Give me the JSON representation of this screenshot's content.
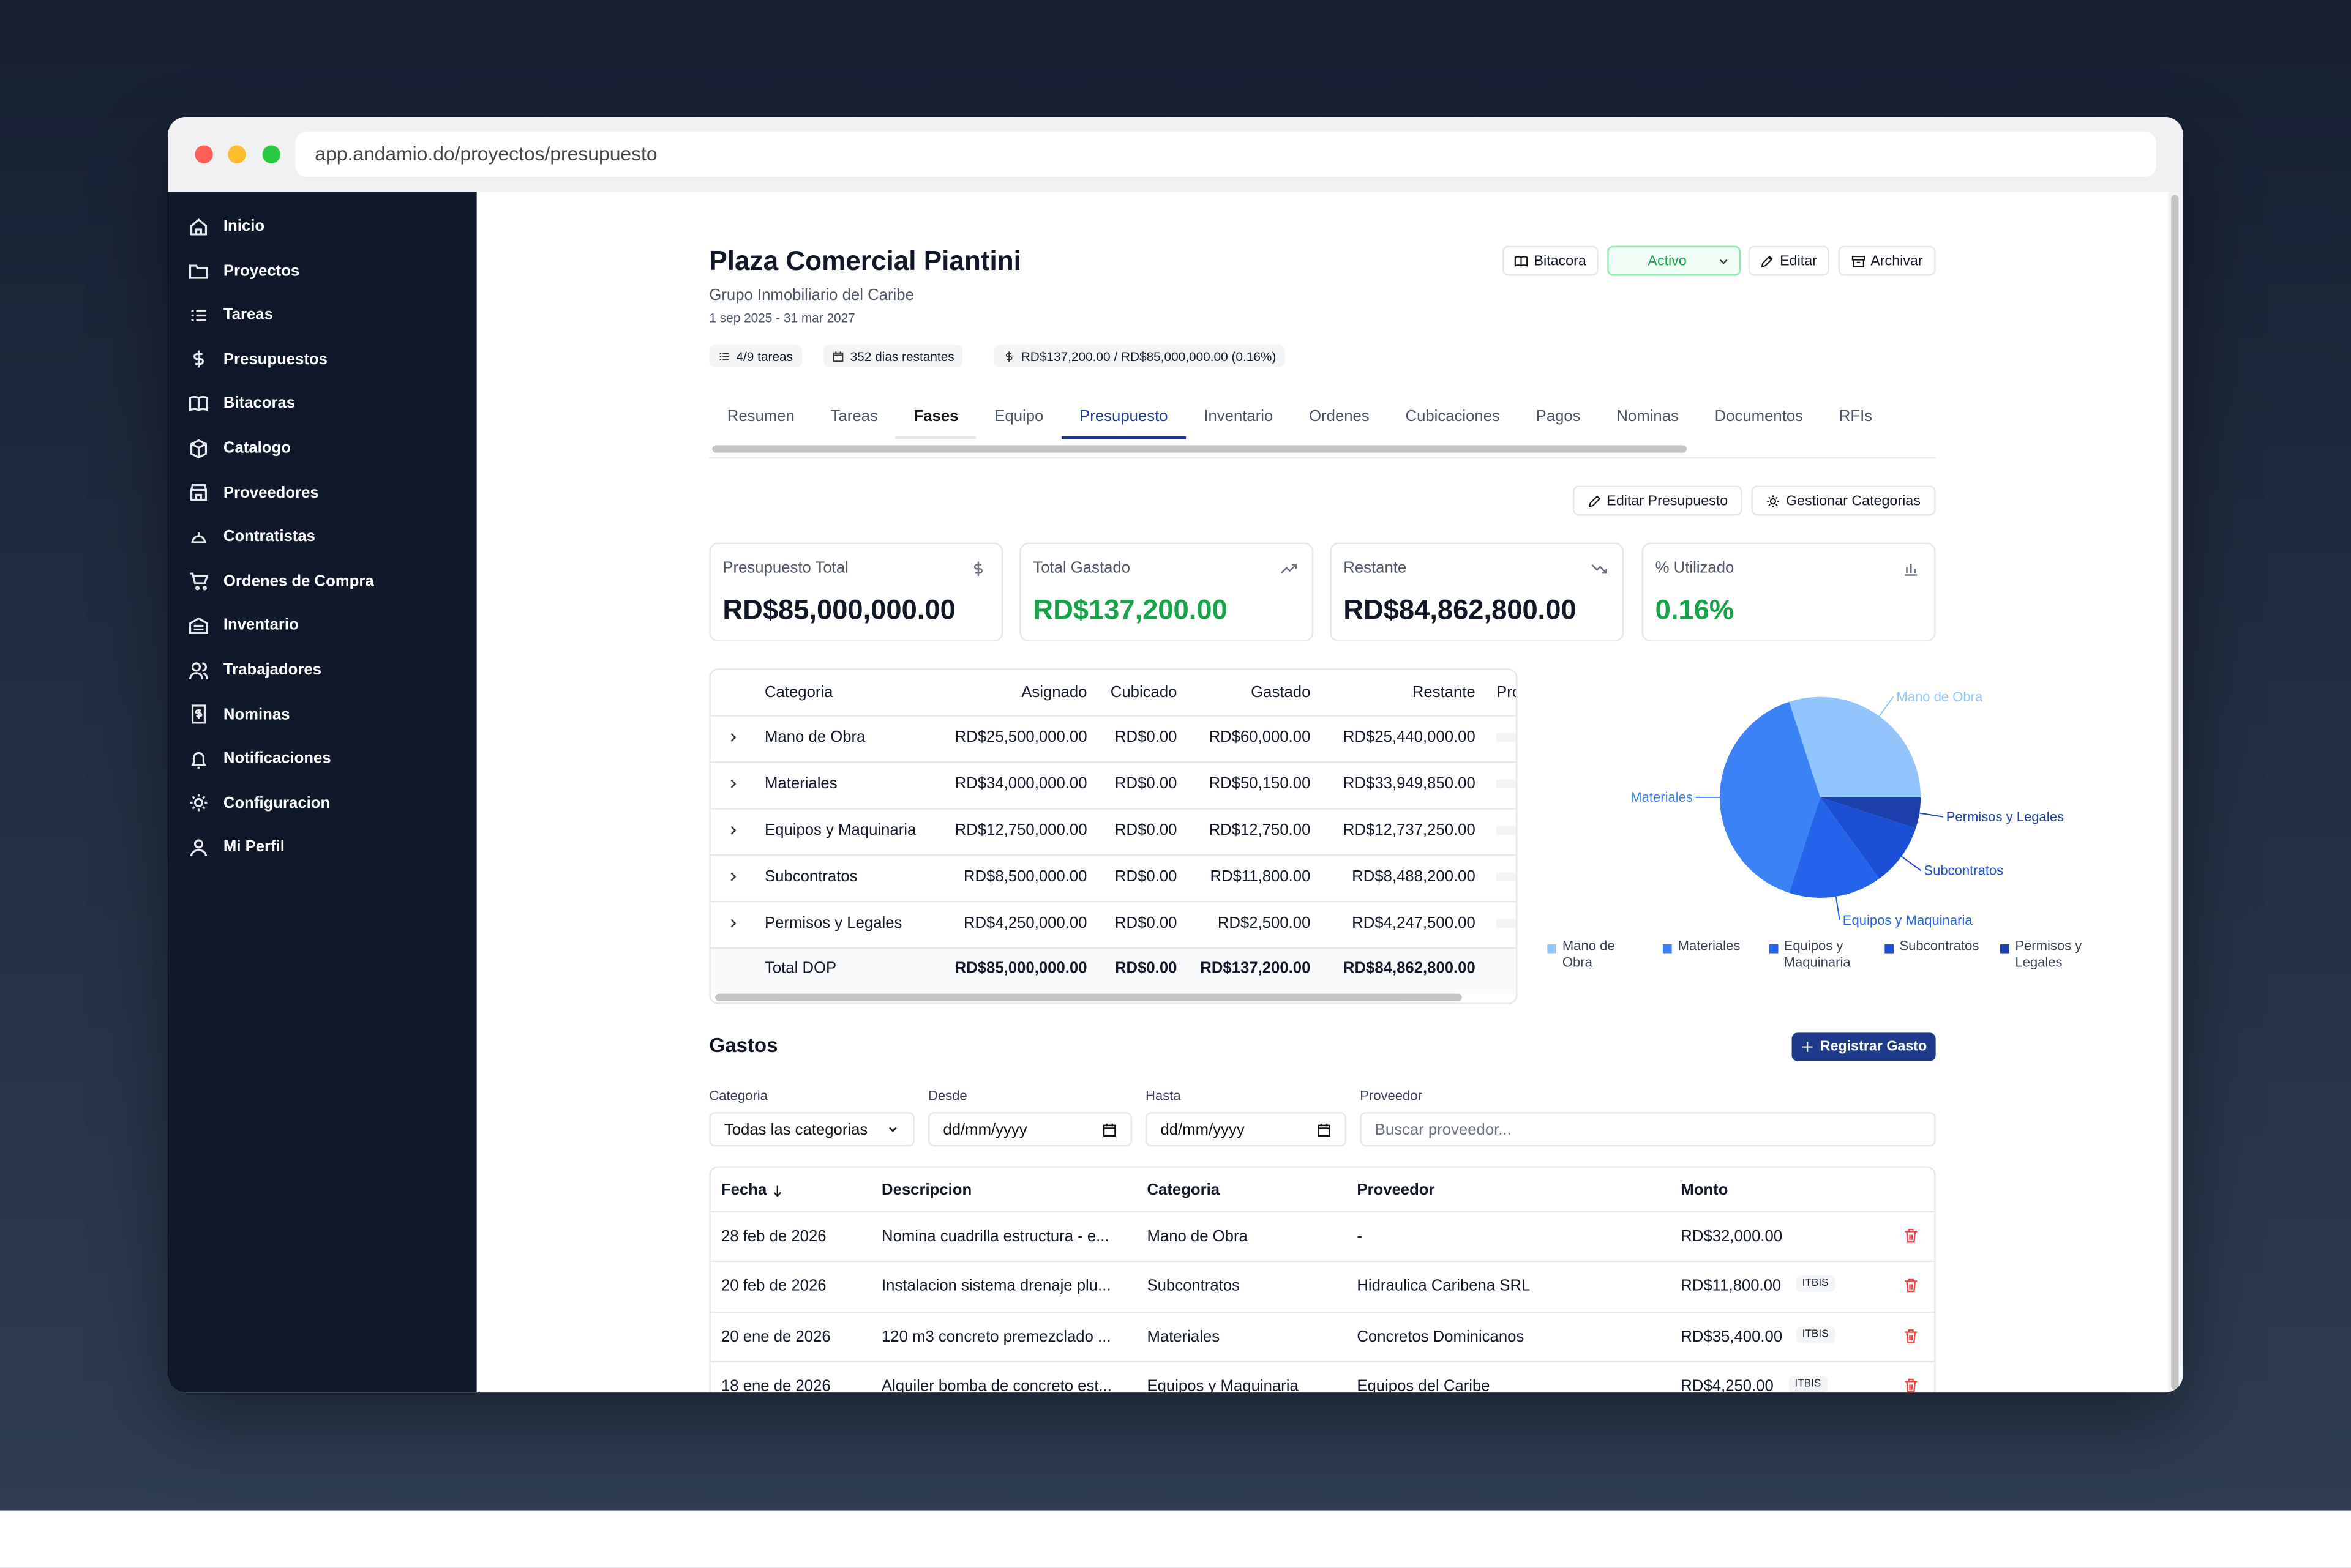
{
  "browser": {
    "url": "app.andamio.do/proyectos/presupuesto"
  },
  "sidebar": {
    "items": [
      "Inicio",
      "Proyectos",
      "Tareas",
      "Presupuestos",
      "Bitacoras",
      "Catalogo",
      "Proveedores",
      "Contratistas",
      "Ordenes de Compra",
      "Inventario",
      "Trabajadores",
      "Nominas",
      "Notificaciones",
      "Configuracion",
      "Mi Perfil"
    ]
  },
  "project": {
    "title": "Plaza Comercial Piantini",
    "client": "Grupo Inmobiliario del Caribe",
    "dates": "1 sep 2025 - 31 mar 2027",
    "badges": [
      "4/9 tareas",
      "352 dias restantes",
      "RD$137,200.00 / RD$85,000,000.00 (0.16%)"
    ],
    "actions": {
      "bitacora": "Bitacora",
      "status": "Activo",
      "edit": "Editar",
      "archive": "Archivar"
    }
  },
  "tabs": [
    "Resumen",
    "Tareas",
    "Fases",
    "Equipo",
    "Presupuesto",
    "Inventario",
    "Ordenes",
    "Cubicaciones",
    "Pagos",
    "Nominas",
    "Documentos",
    "RFIs"
  ],
  "budget_actions": [
    "Editar Presupuesto",
    "Gestionar Categorias"
  ],
  "cards": [
    {
      "label": "Presupuesto Total",
      "value": "RD$85,000,000.00"
    },
    {
      "label": "Total Gastado",
      "value": "RD$137,200.00"
    },
    {
      "label": "Restante",
      "value": "RD$84,862,800.00"
    },
    {
      "label": "% Utilizado",
      "value": "0.16%"
    }
  ],
  "budget_table": {
    "headers": [
      "Categoria",
      "Asignado",
      "Cubicado",
      "Gastado",
      "Restante",
      "Pro"
    ],
    "rows": [
      [
        "Mano de Obra",
        "RD$25,500,000.00",
        "RD$0.00",
        "RD$60,000.00",
        "RD$25,440,000.00"
      ],
      [
        "Materiales",
        "RD$34,000,000.00",
        "RD$0.00",
        "RD$50,150.00",
        "RD$33,949,850.00"
      ],
      [
        "Equipos y Maquinaria",
        "RD$12,750,000.00",
        "RD$0.00",
        "RD$12,750.00",
        "RD$12,737,250.00"
      ],
      [
        "Subcontratos",
        "RD$8,500,000.00",
        "RD$0.00",
        "RD$11,800.00",
        "RD$8,488,200.00"
      ],
      [
        "Permisos y Legales",
        "RD$4,250,000.00",
        "RD$0.00",
        "RD$2,500.00",
        "RD$4,247,500.00"
      ]
    ],
    "total": [
      "Total DOP",
      "RD$85,000,000.00",
      "RD$0.00",
      "RD$137,200.00",
      "RD$84,862,800.00"
    ]
  },
  "pie": {
    "type": "pie",
    "categories": [
      "Mano de Obra",
      "Materiales",
      "Equipos y Maquinaria",
      "Subcontratos",
      "Permisos y Legales"
    ],
    "values": [
      25500000,
      34000000,
      12750000,
      8500000,
      4250000
    ],
    "colors": [
      "#93c5fd",
      "#3b82f6",
      "#2563eb",
      "#1d4ed8",
      "#1e40af"
    ]
  },
  "expenses": {
    "title": "Gastos",
    "button": "Registrar Gasto",
    "filters": [
      {
        "label": "Categoria",
        "value": "Todas las categorias"
      },
      {
        "label": "Desde",
        "value": "dd/mm/yyyy"
      },
      {
        "label": "Hasta",
        "value": "dd/mm/yyyy"
      },
      {
        "label": "Proveedor",
        "value": "Buscar proveedor..."
      }
    ],
    "headers": [
      "Fecha",
      "Descripcion",
      "Categoria",
      "Proveedor",
      "Monto"
    ],
    "rows": [
      {
        "cells": [
          "28 feb de 2026",
          "Nomina cuadrilla estructura - e...",
          "Mano de Obra",
          "-",
          "RD$32,000.00"
        ]
      },
      {
        "cells": [
          "20 feb de 2026",
          "Instalacion sistema drenaje plu...",
          "Subcontratos",
          "Hidraulica Caribena SRL",
          "RD$11,800.00"
        ],
        "badge": "ITBIS"
      },
      {
        "cells": [
          "20 ene de 2026",
          "120 m3 concreto premezclado ...",
          "Materiales",
          "Concretos Dominicanos",
          "RD$35,400.00"
        ],
        "badge": "ITBIS"
      },
      {
        "cells": [
          "18 ene de 2026",
          "Alquiler bomba de concreto est...",
          "Equipos y Maquinaria",
          "Equipos del Caribe",
          "RD$4,250.00"
        ],
        "badge": "ITBIS"
      }
    ]
  }
}
